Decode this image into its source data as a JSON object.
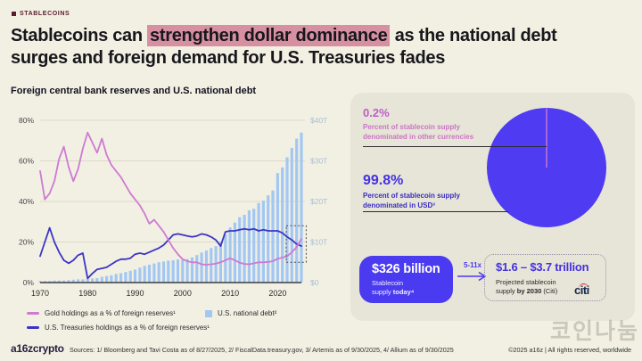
{
  "page": {
    "background": "#f2f0e3",
    "accent_indigo": "#4a3af0",
    "accent_pink": "#cf79d2",
    "highlight_pink": "#d78fa2"
  },
  "tag": {
    "label": "STABLECOINS",
    "color": "#5a1b2f"
  },
  "title": {
    "line1_pre": "Stablecoins can ",
    "line1_highlight": "strengthen dollar dominance",
    "line1_post": " as the national debt",
    "line2": "surges and foreign demand for U.S. Treasuries fades"
  },
  "chart": {
    "heading": "Foreign central bank reserves and U.S. national debt",
    "legend": [
      {
        "label": "Gold holdings as a % of foreign reserves¹",
        "swatch": "line",
        "color": "#cf79d2"
      },
      {
        "label": "U.S. national debt²",
        "swatch": "square",
        "color": "#a3c7f3"
      },
      {
        "label": "U.S. Treasuries holdings as a % of foreign reserves¹",
        "swatch": "line",
        "color": "#3c34c4"
      }
    ]
  },
  "chart_data": [
    {
      "type": "bar",
      "subtype": "combo bar+line, dual axis",
      "title": "Foreign central bank reserves and U.S. national debt",
      "x_range": [
        1970,
        2025
      ],
      "x_interval_years": 1,
      "x_ticks": [
        1970,
        1980,
        1990,
        2000,
        2010,
        2020
      ],
      "left_axis": {
        "unit": "%",
        "max": 80,
        "ticks": [
          80,
          60,
          40,
          20,
          0
        ]
      },
      "right_axis": {
        "unit": "$T",
        "max": 40,
        "ticks": [
          40,
          30,
          20,
          10,
          0
        ],
        "labels": [
          "$40T",
          "$30T",
          "$20T",
          "$10T",
          "$0"
        ]
      },
      "grid": "horizontal",
      "legend_position": "bottom",
      "series": [
        {
          "name": "Gold holdings as a % of foreign reserves¹",
          "type": "line",
          "axis": "left",
          "color": "#cf79d2",
          "values": [
            55,
            41,
            44,
            50,
            61,
            67,
            57,
            50,
            56,
            66,
            74,
            69,
            64,
            71,
            63,
            58,
            55,
            52,
            48,
            44,
            41,
            38,
            34,
            29,
            31,
            28,
            25,
            21,
            17,
            14,
            11.5,
            10.5,
            10,
            10,
            9,
            8.8,
            9,
            9.3,
            10,
            11,
            12,
            11,
            9.8,
            9.2,
            9,
            9.5,
            10,
            10,
            10.2,
            10.5,
            11.8,
            12.3,
            13,
            15,
            17.5,
            21.5
          ]
        },
        {
          "name": "U.S. Treasuries holdings as a % of foreign reserves¹",
          "type": "line",
          "axis": "left",
          "color": "#3c34c4",
          "values": [
            13,
            20,
            27,
            20,
            15,
            11,
            9.5,
            11,
            13.5,
            14.5,
            2,
            4.5,
            6.5,
            7,
            7.5,
            9,
            10.5,
            11.5,
            11.5,
            12,
            14,
            14.5,
            14,
            15,
            16,
            17,
            18.5,
            21,
            23.5,
            24,
            23.5,
            23,
            22.5,
            23,
            24,
            23.5,
            22.5,
            21,
            18,
            25,
            25.5,
            25.5,
            26,
            26.5,
            26,
            26.5,
            25.5,
            26,
            25.5,
            25.5,
            25.5,
            24.5,
            22.5,
            21,
            19,
            18
          ]
        },
        {
          "name": "U.S. national debt²",
          "type": "bar",
          "axis": "right",
          "color": "#a3c7f3",
          "values": [
            0.4,
            0.4,
            0.4,
            0.5,
            0.5,
            0.5,
            0.6,
            0.7,
            0.8,
            0.8,
            0.9,
            1.0,
            1.1,
            1.4,
            1.6,
            1.8,
            2.1,
            2.3,
            2.6,
            2.9,
            3.2,
            3.7,
            4.1,
            4.4,
            4.7,
            5.0,
            5.2,
            5.4,
            5.5,
            5.7,
            5.7,
            5.8,
            6.2,
            6.8,
            7.4,
            7.9,
            8.5,
            9.0,
            10.0,
            11.9,
            13.6,
            14.8,
            16.1,
            16.7,
            17.8,
            18.2,
            19.6,
            20.2,
            21.5,
            22.7,
            27.0,
            28.4,
            30.9,
            33.2,
            35.5,
            37.0
          ]
        }
      ],
      "annotation_box": {
        "note": "dotted box highlighting recent crossover of gold share rising above Treasuries share",
        "x0": 2021.8,
        "x1": 2026,
        "y0_pct": 10,
        "y1_pct": 28
      }
    },
    {
      "type": "pie",
      "slices": [
        {
          "label": "Percent of stablecoin supply denominated in USD³",
          "value": 99.8,
          "color": "#4e3bf2"
        },
        {
          "label": "Percent of stablecoin supply denominated in other currencies",
          "value": 0.2,
          "color": "#cf79d2"
        }
      ],
      "legend_position": "left callout labels"
    }
  ],
  "panel": {
    "other": {
      "pct": "0.2%",
      "desc_line1": "Percent of stablecoin supply",
      "desc_line2": "denominated in other currencies"
    },
    "usd": {
      "pct": "99.8%",
      "desc_line1": "Percent of stablecoin supply",
      "desc_line2": "denominated in USD³"
    },
    "today_box": {
      "headline": "$326 billion",
      "line1": "Stablecoin",
      "line2_pre": "supply ",
      "line2_bold": "today⁴"
    },
    "multiplier": "5-11x",
    "projection_box": {
      "headline": "$1.6 – $3.7 trillion",
      "line1": "Projected stablecoin",
      "line2_pre": "supply ",
      "line2_bold": "by 2030",
      "line2_post": " (Citi)",
      "logo": "citi"
    }
  },
  "footer": {
    "logo": "a16zcrypto",
    "sources": "Sources: 1/ Bloomberg and Tavi Costa as of 8/27/2025, 2/ FiscalData.treasury.gov, 3/ Artemis as of 9/30/2025, 4/ Allium as of 9/30/2025",
    "copyright": "©2025 a16z | All rights reserved, worldwide"
  },
  "watermark": "코인나눔"
}
